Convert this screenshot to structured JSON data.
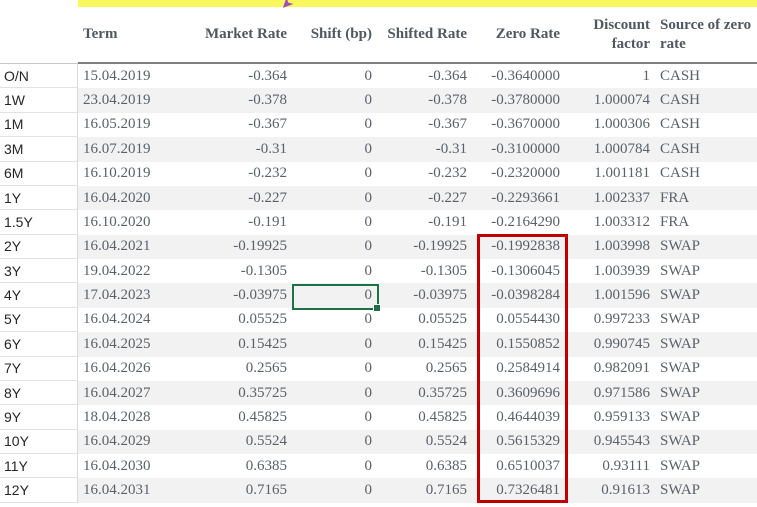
{
  "table": {
    "headers": [
      "Term",
      "Market Rate",
      "Shift (bp)",
      "Shifted Rate",
      "Zero Rate",
      "Discount factor",
      "Source of zero rate"
    ],
    "rows": [
      {
        "label": "O/N",
        "term": "15.04.2019",
        "market": "-0.364",
        "shift": "0",
        "shifted": "-0.364",
        "zero": "-0.3640000",
        "discount": "1",
        "source": "CASH"
      },
      {
        "label": "1W",
        "term": "23.04.2019",
        "market": "-0.378",
        "shift": "0",
        "shifted": "-0.378",
        "zero": "-0.3780000",
        "discount": "1.000074",
        "source": "CASH"
      },
      {
        "label": "1M",
        "term": "16.05.2019",
        "market": "-0.367",
        "shift": "0",
        "shifted": "-0.367",
        "zero": "-0.3670000",
        "discount": "1.000306",
        "source": "CASH"
      },
      {
        "label": "3M",
        "term": "16.07.2019",
        "market": "-0.31",
        "shift": "0",
        "shifted": "-0.31",
        "zero": "-0.3100000",
        "discount": "1.000784",
        "source": "CASH"
      },
      {
        "label": "6M",
        "term": "16.10.2019",
        "market": "-0.232",
        "shift": "0",
        "shifted": "-0.232",
        "zero": "-0.2320000",
        "discount": "1.001181",
        "source": "CASH"
      },
      {
        "label": "1Y",
        "term": "16.04.2020",
        "market": "-0.227",
        "shift": "0",
        "shifted": "-0.227",
        "zero": "-0.2293661",
        "discount": "1.002337",
        "source": "FRA"
      },
      {
        "label": "1.5Y",
        "term": "16.10.2020",
        "market": "-0.191",
        "shift": "0",
        "shifted": "-0.191",
        "zero": "-0.2164290",
        "discount": "1.003312",
        "source": "FRA"
      },
      {
        "label": "2Y",
        "term": "16.04.2021",
        "market": "-0.19925",
        "shift": "0",
        "shifted": "-0.19925",
        "zero": "-0.1992838",
        "discount": "1.003998",
        "source": "SWAP"
      },
      {
        "label": "3Y",
        "term": "19.04.2022",
        "market": "-0.1305",
        "shift": "0",
        "shifted": "-0.1305",
        "zero": "-0.1306045",
        "discount": "1.003939",
        "source": "SWAP"
      },
      {
        "label": "4Y",
        "term": "17.04.2023",
        "market": "-0.03975",
        "shift": "0",
        "shifted": "-0.03975",
        "zero": "-0.0398284",
        "discount": "1.001596",
        "source": "SWAP"
      },
      {
        "label": "5Y",
        "term": "16.04.2024",
        "market": "0.05525",
        "shift": "0",
        "shifted": "0.05525",
        "zero": "0.0554430",
        "discount": "0.997233",
        "source": "SWAP"
      },
      {
        "label": "6Y",
        "term": "16.04.2025",
        "market": "0.15425",
        "shift": "0",
        "shifted": "0.15425",
        "zero": "0.1550852",
        "discount": "0.990745",
        "source": "SWAP"
      },
      {
        "label": "7Y",
        "term": "16.04.2026",
        "market": "0.2565",
        "shift": "0",
        "shifted": "0.2565",
        "zero": "0.2584914",
        "discount": "0.982091",
        "source": "SWAP"
      },
      {
        "label": "8Y",
        "term": "16.04.2027",
        "market": "0.35725",
        "shift": "0",
        "shifted": "0.35725",
        "zero": "0.3609696",
        "discount": "0.971586",
        "source": "SWAP"
      },
      {
        "label": "9Y",
        "term": "18.04.2028",
        "market": "0.45825",
        "shift": "0",
        "shifted": "0.45825",
        "zero": "0.4644039",
        "discount": "0.959133",
        "source": "SWAP"
      },
      {
        "label": "10Y",
        "term": "16.04.2029",
        "market": "0.5524",
        "shift": "0",
        "shifted": "0.5524",
        "zero": "0.5615329",
        "discount": "0.945543",
        "source": "SWAP"
      },
      {
        "label": "11Y",
        "term": "16.04.2030",
        "market": "0.6385",
        "shift": "0",
        "shifted": "0.6385",
        "zero": "0.6510037",
        "discount": "0.93111",
        "source": "SWAP"
      },
      {
        "label": "12Y",
        "term": "16.04.2031",
        "market": "0.7165",
        "shift": "0",
        "shifted": "0.7165",
        "zero": "0.7326481",
        "discount": "0.91613",
        "source": "SWAP"
      }
    ]
  },
  "annotations": {
    "selected_cell": {
      "row_label": "4Y",
      "column": "Shift (bp)",
      "value": "0",
      "border_color": "#1e7145"
    },
    "red_highlight": {
      "column": "Zero Rate",
      "rows": "2Y–12Y",
      "border_color": "#c00000"
    },
    "purple_marker_glyph": "➤"
  },
  "colors": {
    "yellow_band": "#f8f85e",
    "stripe": "#f2f2f2",
    "text_gray": "#5a6169",
    "header_text": "#4f5862",
    "header_underline": "#7f7f7f",
    "selection_green": "#1e7145",
    "highlight_red": "#c00000",
    "marker_purple": "#a44fb0"
  }
}
